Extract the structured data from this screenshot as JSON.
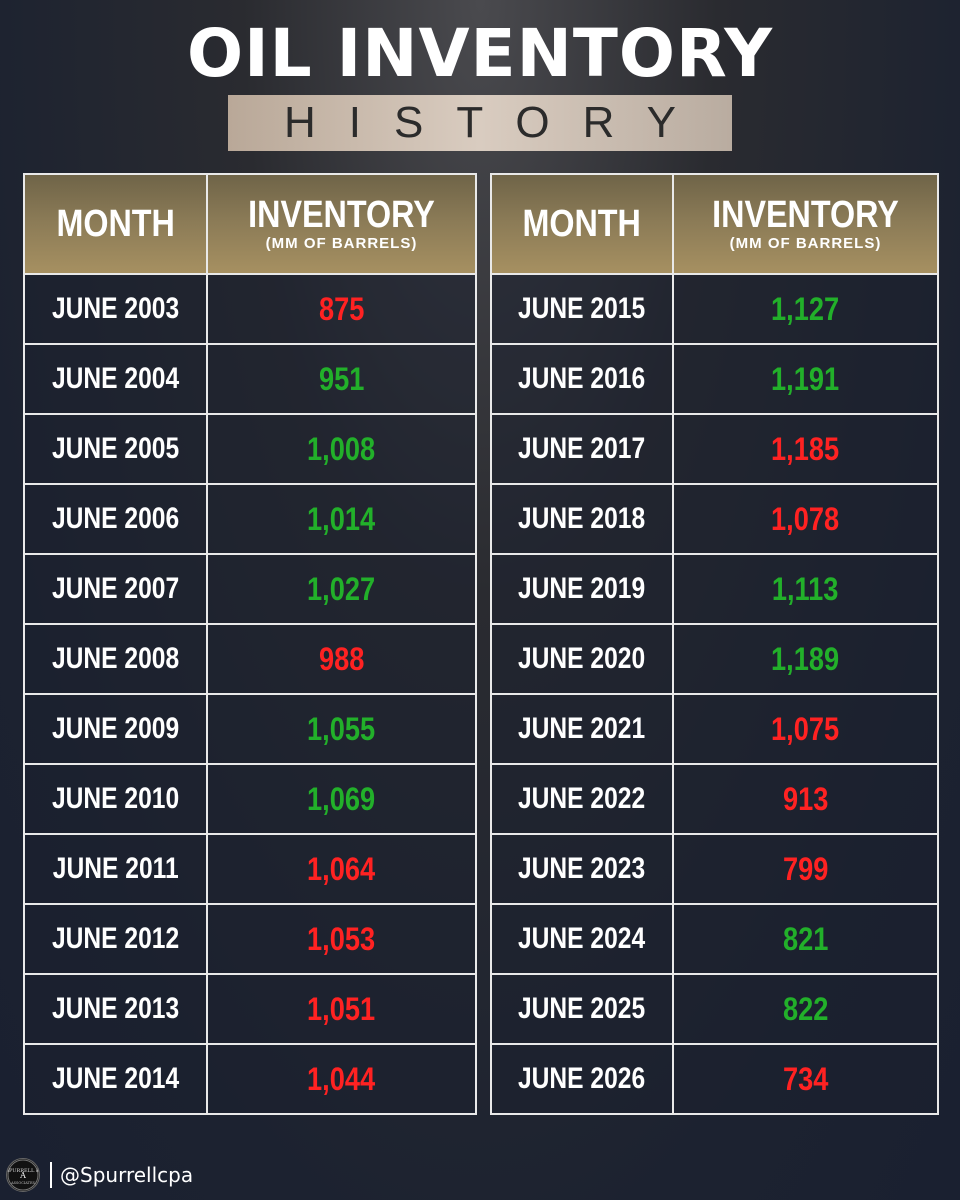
{
  "header": {
    "title": "OIL INVENTORY",
    "subtitle": "HISTORY"
  },
  "table": {
    "col_month": "MONTH",
    "col_inventory": "INVENTORY",
    "col_unit": "(MM OF BARRELS)"
  },
  "colors": {
    "up": "#22b02a",
    "down": "#ff2222"
  },
  "left_rows": [
    {
      "month": "JUNE 2003",
      "value": "875",
      "trend": "down"
    },
    {
      "month": "JUNE 2004",
      "value": "951",
      "trend": "up"
    },
    {
      "month": "JUNE 2005",
      "value": "1,008",
      "trend": "up"
    },
    {
      "month": "JUNE 2006",
      "value": "1,014",
      "trend": "up"
    },
    {
      "month": "JUNE 2007",
      "value": "1,027",
      "trend": "up"
    },
    {
      "month": "JUNE 2008",
      "value": "988",
      "trend": "down"
    },
    {
      "month": "JUNE 2009",
      "value": "1,055",
      "trend": "up"
    },
    {
      "month": "JUNE 2010",
      "value": "1,069",
      "trend": "up"
    },
    {
      "month": "JUNE 2011",
      "value": "1,064",
      "trend": "down"
    },
    {
      "month": "JUNE 2012",
      "value": "1,053",
      "trend": "down"
    },
    {
      "month": "JUNE 2013",
      "value": "1,051",
      "trend": "down"
    },
    {
      "month": "JUNE 2014",
      "value": "1,044",
      "trend": "down"
    }
  ],
  "right_rows": [
    {
      "month": "JUNE 2015",
      "value": "1,127",
      "trend": "up"
    },
    {
      "month": "JUNE 2016",
      "value": "1,191",
      "trend": "up"
    },
    {
      "month": "JUNE 2017",
      "value": "1,185",
      "trend": "down"
    },
    {
      "month": "JUNE 2018",
      "value": "1,078",
      "trend": "down"
    },
    {
      "month": "JUNE 2019",
      "value": "1,113",
      "trend": "up"
    },
    {
      "month": "JUNE 2020",
      "value": "1,189",
      "trend": "up"
    },
    {
      "month": "JUNE 2021",
      "value": "1,075",
      "trend": "down"
    },
    {
      "month": "JUNE 2022",
      "value": "913",
      "trend": "down"
    },
    {
      "month": "JUNE 2023",
      "value": "799",
      "trend": "down"
    },
    {
      "month": "JUNE 2024",
      "value": "821",
      "trend": "up"
    },
    {
      "month": "JUNE 2025",
      "value": "822",
      "trend": "up"
    },
    {
      "month": "JUNE 2026",
      "value": "734",
      "trend": "down"
    }
  ],
  "footer": {
    "logo_text": "SPURRELL & ASSOCIATES",
    "handle": "@Spurrellcpa"
  }
}
